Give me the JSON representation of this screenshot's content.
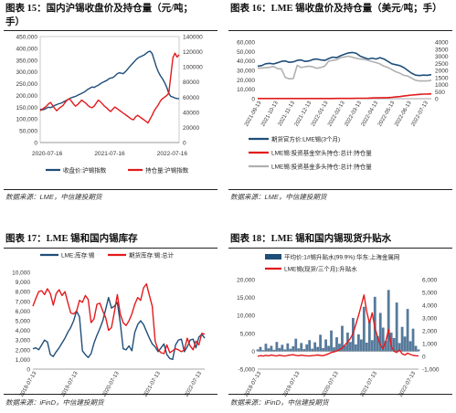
{
  "panels": [
    {
      "title_line1": "图表 15：国内沪锡收盘价及持仓量（元/吨；",
      "title_line2": "手）",
      "source": "数据来源：LME，中信建投期货"
    },
    {
      "title_line1": "图表 16：LME 锡收盘价及持仓量（美元/吨；手）",
      "source": "数据来源：LME，中信建投期货"
    },
    {
      "title_line1": "图表 17：LME 锡和国内锡库存",
      "source": "数据来源：iFinD，中信建投期货"
    },
    {
      "title_line1": "图表 18：LME 锡和国内锡现货升贴水",
      "source": "数据来源：iFinD，中信建投期货"
    }
  ],
  "chart_data": [
    {
      "type": "line",
      "x_ticks": [
        "2020-07-16",
        "2021-07-16",
        "2022-07-16"
      ],
      "y_left": {
        "ylim": [
          0,
          450000
        ],
        "ticks": [
          "0",
          "50,000",
          "100,000",
          "150,000",
          "200,000",
          "250,000",
          "300,000",
          "350,000",
          "400,000",
          "450,000"
        ]
      },
      "y_right": {
        "ylim": [
          0,
          140000
        ],
        "ticks": [
          "0",
          "20000",
          "40000",
          "60000",
          "80000",
          "100000",
          "120000",
          "140000"
        ]
      },
      "legend": [
        {
          "name": "收盘价:沪锡指数",
          "color": "#1f4e79"
        },
        {
          "name": "持仓量:沪锡指数",
          "color": "#e31a1c"
        }
      ],
      "series": [
        {
          "name": "收盘价:沪锡指数",
          "axis": "left",
          "color": "#1f4e79",
          "values": [
            142000,
            139000,
            141000,
            146000,
            150000,
            148000,
            152000,
            158000,
            161000,
            165000,
            167000,
            172000,
            176000,
            181000,
            185000,
            190000,
            193000,
            196000,
            200000,
            205000,
            209000,
            213000,
            219000,
            226000,
            231000,
            236000,
            234000,
            239000,
            243000,
            250000,
            255000,
            259000,
            263000,
            270000,
            274000,
            276000,
            282000,
            291000,
            296000,
            295000,
            292000,
            300000,
            310000,
            321000,
            330000,
            340000,
            350000,
            358000,
            363000,
            367000,
            371000,
            378000,
            385000,
            388000,
            378000,
            350000,
            322000,
            300000,
            283000,
            270000,
            255000,
            235000,
            209000,
            196000,
            193000,
            189000,
            187000,
            186000
          ]
        },
        {
          "name": "持仓量:沪锡指数",
          "axis": "right",
          "color": "#e31a1c",
          "values": [
            42000,
            44000,
            46000,
            48000,
            51000,
            53000,
            49000,
            45000,
            42000,
            45000,
            47000,
            49000,
            53000,
            56000,
            58000,
            55000,
            51000,
            48000,
            50000,
            53000,
            56000,
            54000,
            52000,
            49000,
            47000,
            46000,
            48000,
            52000,
            56000,
            54000,
            51000,
            48000,
            46000,
            43000,
            41000,
            44000,
            47000,
            45000,
            43000,
            41000,
            39000,
            37000,
            35000,
            33000,
            31000,
            30000,
            34000,
            36000,
            34000,
            32000,
            30000,
            28000,
            26000,
            31000,
            36000,
            42000,
            46000,
            50000,
            55000,
            58000,
            60000,
            62000,
            65000,
            88000,
            112000,
            118000,
            113000,
            116000
          ]
        }
      ]
    },
    {
      "type": "line",
      "x_ticks": [
        "2021-09-13",
        "2021-10-13",
        "2021-11-13",
        "2021-12-13",
        "2022-01-13",
        "2022-02-13",
        "2022-03-13",
        "2022-04-13",
        "2022-05-13",
        "2022-06-13",
        "2022-07-13"
      ],
      "y_left": {
        "ylim": [
          0,
          60000
        ],
        "ticks": [
          "0",
          "10,000",
          "20,000",
          "30,000",
          "40,000",
          "50,000",
          "60,000"
        ]
      },
      "y_right": {
        "ylim": [
          0,
          4000
        ],
        "ticks": [
          "0",
          "500",
          "1000",
          "1500",
          "2000",
          "2500",
          "3000",
          "3500",
          "4000"
        ]
      },
      "legend": [
        {
          "name": "期货官方价:LME锡(3个月)",
          "color": "#1f4e79"
        },
        {
          "name": "LME锡:投资基金空头持仓:总计:持仓量",
          "color": "#e31a1c"
        },
        {
          "name": "LME锡:投资基金多头持仓:总计:持仓量",
          "color": "#b0b0b0"
        }
      ],
      "series": [
        {
          "name": "期货官方价:LME锡(3个月)",
          "axis": "left",
          "color": "#1f4e79",
          "values": [
            34500,
            35000,
            37000,
            37500,
            36800,
            38000,
            39500,
            40000,
            38500,
            39000,
            40500,
            41000,
            39500,
            40000,
            41500,
            42000,
            41000,
            40500,
            42500,
            44000,
            43500,
            45500,
            47000,
            48500,
            49000,
            48000,
            45000,
            43500,
            42000,
            43000,
            42000,
            43500,
            42000,
            39500,
            37000,
            36000,
            35000,
            33000,
            30000,
            27000,
            25000,
            24500,
            25000,
            24800,
            25500
          ]
        },
        {
          "name": "LME锡:投资基金空头持仓:总计:持仓量",
          "axis": "right",
          "color": "#e31a1c",
          "values": [
            10,
            10,
            10,
            10,
            10,
            10,
            10,
            10,
            10,
            10,
            10,
            10,
            10,
            10,
            10,
            10,
            10,
            10,
            10,
            10,
            20,
            20,
            20,
            20,
            20,
            30,
            30,
            30,
            40,
            50,
            60,
            60,
            70,
            80,
            100,
            120,
            150,
            190,
            220,
            260,
            280,
            300,
            320,
            330,
            340
          ]
        },
        {
          "name": "LME锡:投资基金多头持仓:总计:持仓量",
          "axis": "right",
          "color": "#b0b0b0",
          "values": [
            2150,
            2170,
            2190,
            2210,
            2280,
            2120,
            2100,
            1500,
            1400,
            1420,
            2350,
            2200,
            2250,
            2300,
            2240,
            2150,
            2200,
            2300,
            2650,
            2700,
            2750,
            2900,
            2950,
            3000,
            2920,
            2850,
            2800,
            2780,
            2700,
            2620,
            2550,
            2450,
            2300,
            2200,
            2050,
            1900,
            1800,
            1650,
            1600,
            1450,
            1300,
            1250,
            1250,
            1250,
            1300
          ]
        }
      ]
    },
    {
      "type": "line",
      "x_ticks": [
        "2018-07-13",
        "2019-07-13",
        "2020-07-13",
        "2021-07-13",
        "2022-07-13"
      ],
      "y_left": {
        "ylim": [
          0,
          10000
        ],
        "ticks": [
          "0",
          "1,000",
          "2,000",
          "3,000",
          "4,000",
          "5,000",
          "6,000",
          "7,000",
          "8,000",
          "9,000",
          "10,000"
        ]
      },
      "legend": [
        {
          "name": "LME:库存:锡",
          "color": "#1f4e79"
        },
        {
          "name": "期货库存:锡:总计",
          "color": "#e31a1c"
        }
      ],
      "series": [
        {
          "name": "LME:库存:锡",
          "axis": "left",
          "color": "#1f4e79",
          "values": [
            2100,
            2200,
            2000,
            2500,
            3000,
            2800,
            1500,
            1300,
            1800,
            2200,
            2700,
            3200,
            3800,
            4300,
            5000,
            6000,
            5400,
            1900,
            1500,
            1200,
            1600,
            2700,
            3500,
            4200,
            5000,
            6200,
            7400,
            6300,
            6500,
            6900,
            4800,
            2100,
            2000,
            2400,
            1900,
            3800,
            4600,
            5000,
            4600,
            3900,
            3200,
            2600,
            2300,
            1800,
            2200,
            2600,
            1500,
            1100,
            1000,
            2500,
            3000,
            3100,
            1800,
            2300,
            3000,
            3100,
            2200,
            3300,
            3600,
            3200
          ]
        },
        {
          "name": "期货库存:锡:总计",
          "axis": "left",
          "color": "#e31a1c",
          "values": [
            6500,
            7300,
            8000,
            8100,
            7700,
            8300,
            7800,
            6600,
            7800,
            8200,
            7600,
            8000,
            6900,
            5800,
            5700,
            6000,
            7100,
            6900,
            7600,
            7200,
            4800,
            5200,
            6700,
            6800,
            6000,
            5300,
            4000,
            4300,
            5900,
            7700,
            5700,
            4800,
            4500,
            5000,
            5700,
            6700,
            7400,
            7100,
            8400,
            8800,
            7600,
            6500,
            2900,
            2000,
            1700,
            1600,
            2500,
            1700,
            1900,
            2100,
            2000,
            1800,
            2000,
            3200,
            2400,
            2000,
            2900,
            2500,
            3700,
            3600
          ]
        }
      ]
    },
    {
      "type": "line",
      "x_ticks": [
        "2018-07-13",
        "2019-07-13",
        "2020-07-13",
        "2021-07-13",
        "2022-07-13"
      ],
      "y_left": {
        "ylim": [
          -5000,
          20000
        ],
        "ticks": [
          "-5,000",
          "0",
          "5,000",
          "10,000",
          "15,000",
          "20,000"
        ]
      },
      "y_right": {
        "ylim": [
          -1000,
          6000
        ],
        "ticks": [
          "-1,000",
          "0",
          "1,000",
          "2,000",
          "3,000",
          "4,000",
          "5,000",
          "6,000"
        ]
      },
      "legend": [
        {
          "name": "平均价:1#锡升贴水(99.9%):华东:上海金属网",
          "color": "#1f4e79",
          "style": "area"
        },
        {
          "name": "LME锡(现货/三个月):升贴水",
          "color": "#e31a1c"
        }
      ],
      "series": [
        {
          "name": "平均价:1#锡升贴水(99.9%):华东:上海金属网",
          "axis": "left",
          "color": "#1f4e79",
          "values": [
            500,
            1200,
            300,
            2100,
            800,
            1500,
            400,
            2600,
            900,
            1800,
            500,
            2200,
            700,
            1400,
            3500,
            800,
            2300,
            600,
            1900,
            3100,
            700,
            2500,
            1200,
            4600,
            900,
            3300,
            1500,
            5800,
            1100,
            3900,
            2100,
            7100,
            1600,
            5200,
            2600,
            9300,
            1900,
            4700,
            3300,
            12400,
            2400,
            8500,
            3100,
            15200,
            4200,
            10700,
            6600,
            2900,
            17100,
            5200,
            3700,
            13600,
            2300,
            6800,
            4100,
            11800,
            2800,
            6300,
            1500,
            500
          ]
        },
        {
          "name": "LME锡(现货/三个月):升贴水",
          "axis": "right",
          "color": "#e31a1c",
          "values": [
            0,
            60,
            20,
            80,
            40,
            100,
            60,
            30,
            90,
            50,
            20,
            70,
            100,
            130,
            80,
            50,
            90,
            60,
            40,
            30,
            60,
            80,
            110,
            70,
            50,
            120,
            200,
            300,
            350,
            420,
            520,
            650,
            900,
            1100,
            1400,
            1800,
            2500,
            3200,
            4000,
            4800,
            3500,
            2600,
            3400,
            2200,
            1500,
            900,
            600,
            1200,
            2100,
            800,
            400,
            300,
            500,
            200,
            100,
            250,
            150,
            80,
            50,
            30
          ]
        }
      ]
    }
  ]
}
